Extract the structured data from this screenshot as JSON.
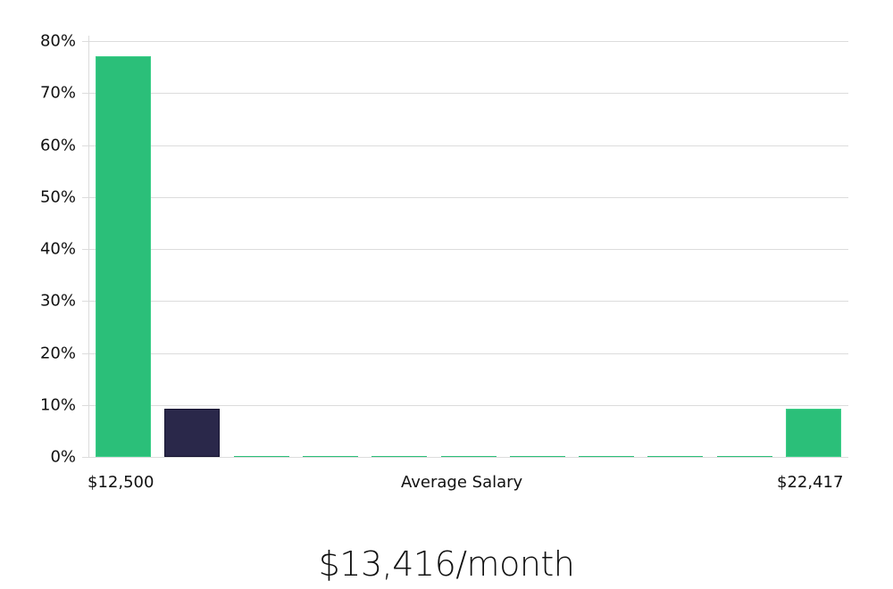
{
  "chart_data": {
    "type": "bar",
    "title": "",
    "xlabel": "Average Salary",
    "ylabel": "",
    "x_range_labels": {
      "min": "$12,500",
      "max": "$22,417"
    },
    "categories": [
      "bin1",
      "bin2",
      "bin3",
      "bin4",
      "bin5",
      "bin6",
      "bin7",
      "bin8",
      "bin9",
      "bin10",
      "bin11"
    ],
    "values": [
      77.0,
      9.2,
      0,
      0,
      0,
      0,
      0,
      0,
      0,
      0,
      9.2
    ],
    "highlight_index": 1,
    "ylim": [
      0,
      80
    ],
    "yticks": [
      "0%",
      "10%",
      "20%",
      "30%",
      "40%",
      "50%",
      "60%",
      "70%",
      "80%"
    ],
    "grid": true,
    "legend": null
  },
  "colors": {
    "bar": "#2bbf79",
    "highlight": "#2a284a",
    "grid": "#dcdcdc"
  },
  "labels": {
    "x_min": "$12,500",
    "x_center": "Average Salary",
    "x_max": "$22,417"
  },
  "summary": "$13,416/month"
}
